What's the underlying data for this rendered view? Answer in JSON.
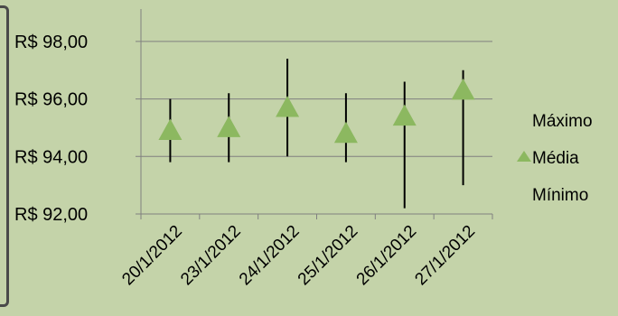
{
  "chart_data": {
    "type": "stock",
    "categories": [
      "20/1/2012",
      "23/1/2012",
      "24/1/2012",
      "25/1/2012",
      "26/1/2012",
      "27/1/2012"
    ],
    "series": [
      {
        "name": "Máximo",
        "values": [
          96.0,
          96.2,
          97.4,
          96.2,
          96.6,
          97.0
        ]
      },
      {
        "name": "Média",
        "values": [
          94.9,
          95.0,
          95.7,
          94.8,
          95.4,
          96.3
        ]
      },
      {
        "name": "Mínimo",
        "values": [
          93.8,
          93.8,
          94.0,
          93.8,
          92.2,
          93.0
        ]
      }
    ],
    "y_tick_labels": [
      "R$ 92,00",
      "R$ 94,00",
      "R$ 96,00",
      "R$ 98,00"
    ],
    "y_ticks": [
      92,
      94,
      96,
      98
    ],
    "ylim": [
      92,
      99
    ],
    "grid": "horizontal",
    "legend_position": "right",
    "colors": {
      "marker": "#8cb860",
      "line": "#000000",
      "grid": "#808080"
    }
  }
}
